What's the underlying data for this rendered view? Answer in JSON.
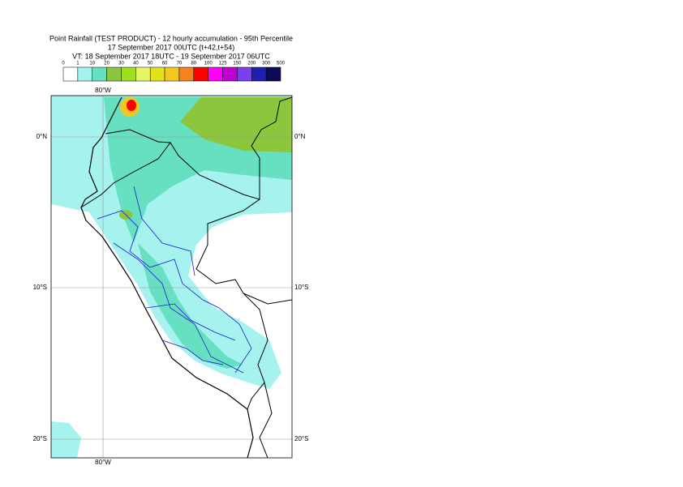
{
  "header": {
    "title": "Point Rainfall (TEST PRODUCT) - 12 hourly accumulation - 95th Percentile",
    "base_time": "17 September 2017 00UTC (t+42,t+54)",
    "valid_time": "VT: 18 September 2017 18UTC - 19 September 2017 06UTC"
  },
  "legend": {
    "labels": [
      "0",
      "1",
      "10",
      "20",
      "30",
      "40",
      "50",
      "60",
      "70",
      "80",
      "100",
      "125",
      "150",
      "200",
      "300",
      "500"
    ],
    "colors": [
      "#ffffff",
      "#a6f2ee",
      "#66e0c0",
      "#8cc63c",
      "#9ee01e",
      "#e6f566",
      "#e2e21c",
      "#f2c81e",
      "#f5821e",
      "#ff0000",
      "#ff00ff",
      "#c000d0",
      "#7a40f0",
      "#2020b0",
      "#0e0a5a"
    ]
  },
  "map": {
    "lon_label": "80°W",
    "lat_labels": [
      "0°N",
      "10°S",
      "20°S"
    ]
  }
}
